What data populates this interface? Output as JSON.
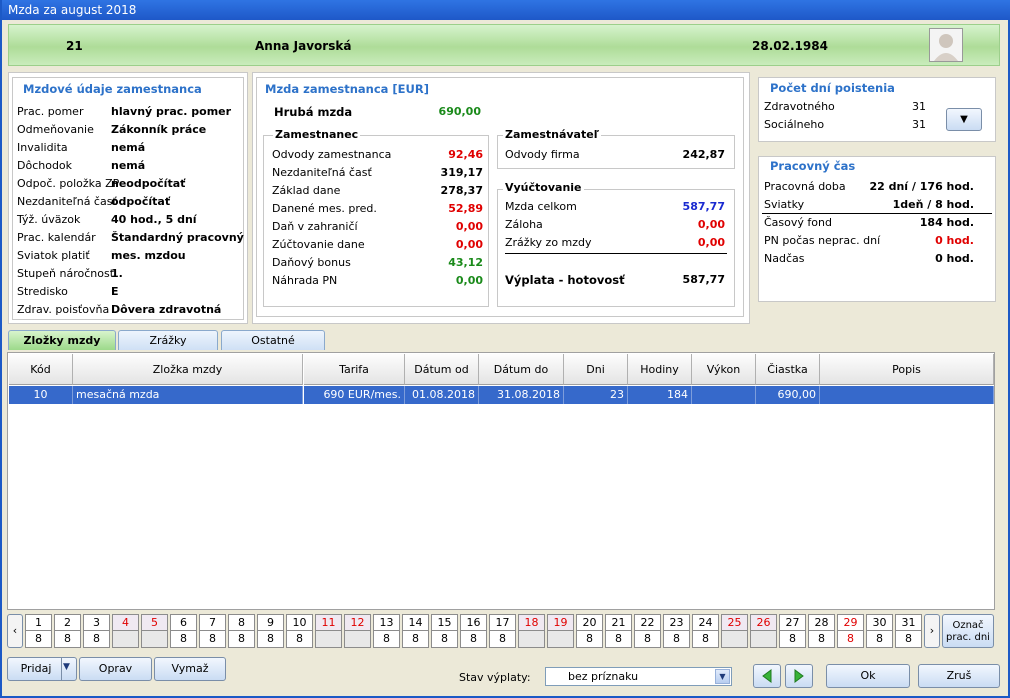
{
  "window": {
    "title": "Mzda za august 2018"
  },
  "employee": {
    "id": "21",
    "name": "Anna Javorská",
    "date": "28.02.1984"
  },
  "mzdove": {
    "title": "Mzdové údaje zamestnanca",
    "rows": [
      [
        "Prac. pomer",
        "hlavný prac. pomer"
      ],
      [
        "Odmeňovanie",
        "Zákonník práce"
      ],
      [
        "Invalidita",
        "nemá"
      ],
      [
        "Dôchodok",
        "nemá"
      ],
      [
        "Odpoč. položka ZP",
        "neodpočítať"
      ],
      [
        "Nezdaniteľná časť",
        "odpočítať"
      ],
      [
        "Týž. úväzok",
        "40 hod., 5 dní"
      ],
      [
        "Prac. kalendár",
        "Štandardný pracovný"
      ],
      [
        "Sviatok platiť",
        "mes. mzdou"
      ],
      [
        "Stupeň náročnosti",
        "1."
      ],
      [
        "Stredisko",
        "E"
      ],
      [
        "Zdrav. poisťovňa",
        "Dôvera zdravotná"
      ]
    ]
  },
  "mzda": {
    "title": "Mzda zamestnanca [EUR]",
    "gross_label": "Hrubá mzda",
    "gross_value": "690,00",
    "employee_title": "Zamestnanec",
    "employee_rows": [
      [
        "Odvody zamestnanca",
        "92,46"
      ],
      [
        "Nezdaniteľná časť",
        "319,17"
      ],
      [
        "Základ dane",
        "278,37"
      ],
      [
        "Danené mes. pred.",
        "52,89"
      ],
      [
        "Daň v zahraničí",
        "0,00"
      ],
      [
        "Zúčtovanie dane",
        "0,00"
      ],
      [
        "Daňový bonus",
        "43,12"
      ],
      [
        "Náhrada PN",
        "0,00"
      ]
    ],
    "employer_title": "Zamestnávateľ",
    "employer_rows": [
      [
        "Odvody firma",
        "242,87"
      ]
    ],
    "settle_title": "Vyúčtovanie",
    "settle_rows": [
      [
        "Mzda celkom",
        "587,77"
      ],
      [
        "Záloha",
        "0,00"
      ],
      [
        "Zrážky zo mzdy",
        "0,00"
      ]
    ],
    "payout_label": "Výplata - hotovosť",
    "payout_value": "587,77"
  },
  "insurance": {
    "title": "Počet dní poistenia",
    "rows": [
      [
        "Zdravotného",
        "31"
      ],
      [
        "Sociálneho",
        "31"
      ]
    ]
  },
  "worktime": {
    "title": "Pracovný čas",
    "rows": [
      [
        "Pracovná doba",
        "22 dní / 176 hod."
      ],
      [
        "Sviatky",
        "1deň / 8 hod."
      ],
      [
        "Časový fond",
        "184 hod."
      ],
      [
        "PN počas neprac. dní",
        "0 hod."
      ],
      [
        "Nadčas",
        "0 hod."
      ]
    ]
  },
  "tabs": [
    "Zložky mzdy",
    "Zrážky",
    "Ostatné"
  ],
  "table": {
    "columns": [
      "Kód",
      "Zložka mzdy",
      "Tarifa",
      "Dátum od",
      "Dátum do",
      "Dni",
      "Hodiny",
      "Výkon",
      "Čiastka",
      "Popis"
    ],
    "rows": [
      [
        "10",
        "mesačná mzda",
        "690 EUR/mes.",
        "01.08.2018",
        "31.08.2018",
        "23",
        "184",
        "",
        "690,00",
        ""
      ]
    ]
  },
  "calendar": {
    "days": [
      "1",
      "2",
      "3",
      "4",
      "5",
      "6",
      "7",
      "8",
      "9",
      "10",
      "11",
      "12",
      "13",
      "14",
      "15",
      "16",
      "17",
      "18",
      "19",
      "20",
      "21",
      "22",
      "23",
      "24",
      "25",
      "26",
      "27",
      "28",
      "29",
      "30",
      "31"
    ],
    "hours": [
      "8",
      "8",
      "8",
      "",
      "",
      "8",
      "8",
      "8",
      "8",
      "8",
      "",
      "",
      "8",
      "8",
      "8",
      "8",
      "8",
      "",
      "",
      "8",
      "8",
      "8",
      "8",
      "8",
      "",
      "",
      "8",
      "8",
      "8",
      "8",
      "8"
    ],
    "weekend": [
      4,
      5,
      11,
      12,
      18,
      19,
      25,
      26
    ],
    "holiday": [
      29
    ],
    "prev": "‹",
    "next": "›",
    "mark_button": "Označ prac. dni"
  },
  "buttons": {
    "add": "Pridaj",
    "edit": "Oprav",
    "delete": "Vymaž",
    "ok": "Ok",
    "cancel": "Zruš"
  },
  "status": {
    "label": "Stav výplaty:",
    "value": "bez príznaku"
  }
}
